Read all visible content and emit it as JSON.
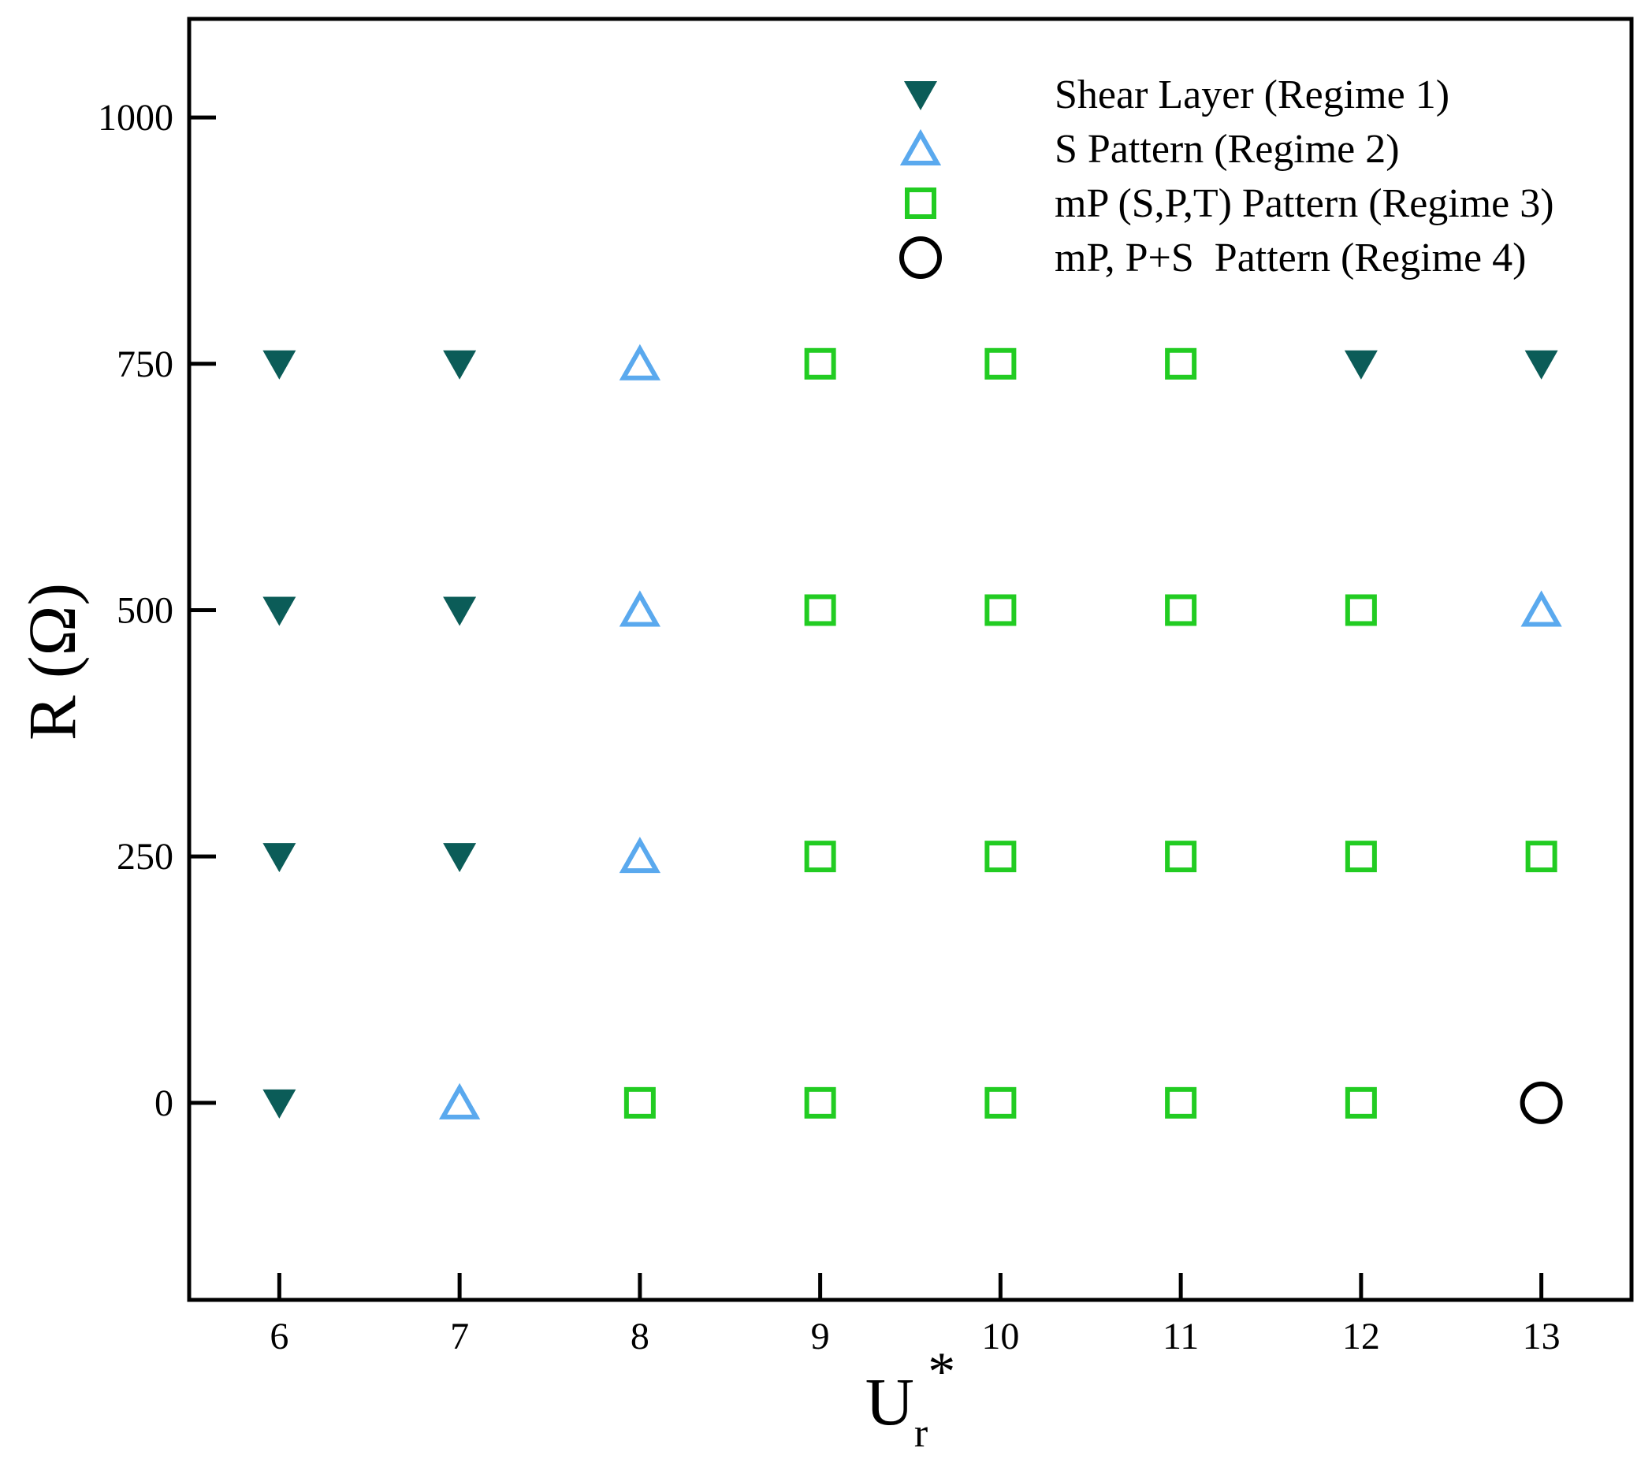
{
  "chart_data": {
    "type": "scatter",
    "title": "",
    "xlabel": {
      "main": "U",
      "sub": "r",
      "sup": "*"
    },
    "ylabel": "R (Ω)",
    "xlim": [
      5.5,
      13.5
    ],
    "ylim": [
      -200,
      1100
    ],
    "x_ticks": [
      6,
      7,
      8,
      9,
      10,
      11,
      12,
      13
    ],
    "y_ticks": [
      0,
      250,
      500,
      750,
      1000
    ],
    "grid": false,
    "legend_position": "top-right",
    "series": [
      {
        "name": "Shear Layer (Regime 1)",
        "marker": "triangle-down-filled",
        "color": "#0b5c58",
        "points": [
          {
            "x": 6,
            "y": 750
          },
          {
            "x": 7,
            "y": 750
          },
          {
            "x": 12,
            "y": 750
          },
          {
            "x": 13,
            "y": 750
          },
          {
            "x": 6,
            "y": 500
          },
          {
            "x": 7,
            "y": 500
          },
          {
            "x": 6,
            "y": 250
          },
          {
            "x": 7,
            "y": 250
          },
          {
            "x": 6,
            "y": 0
          }
        ]
      },
      {
        "name": "S Pattern (Regime 2)",
        "marker": "triangle-up-open",
        "color": "#5aa9ee",
        "points": [
          {
            "x": 8,
            "y": 750
          },
          {
            "x": 8,
            "y": 500
          },
          {
            "x": 13,
            "y": 500
          },
          {
            "x": 8,
            "y": 250
          },
          {
            "x": 7,
            "y": 0
          }
        ]
      },
      {
        "name": "mP (S,P,T) Pattern (Regime 3)",
        "marker": "square-open",
        "color": "#22cc22",
        "points": [
          {
            "x": 9,
            "y": 750
          },
          {
            "x": 10,
            "y": 750
          },
          {
            "x": 11,
            "y": 750
          },
          {
            "x": 9,
            "y": 500
          },
          {
            "x": 10,
            "y": 500
          },
          {
            "x": 11,
            "y": 500
          },
          {
            "x": 12,
            "y": 500
          },
          {
            "x": 9,
            "y": 250
          },
          {
            "x": 10,
            "y": 250
          },
          {
            "x": 11,
            "y": 250
          },
          {
            "x": 12,
            "y": 250
          },
          {
            "x": 13,
            "y": 250
          },
          {
            "x": 8,
            "y": 0
          },
          {
            "x": 9,
            "y": 0
          },
          {
            "x": 10,
            "y": 0
          },
          {
            "x": 11,
            "y": 0
          },
          {
            "x": 12,
            "y": 0
          }
        ]
      },
      {
        "name": "mP, P+S  Pattern (Regime 4)",
        "marker": "circle-open",
        "color": "#000000",
        "points": [
          {
            "x": 13,
            "y": 0
          }
        ]
      }
    ]
  }
}
